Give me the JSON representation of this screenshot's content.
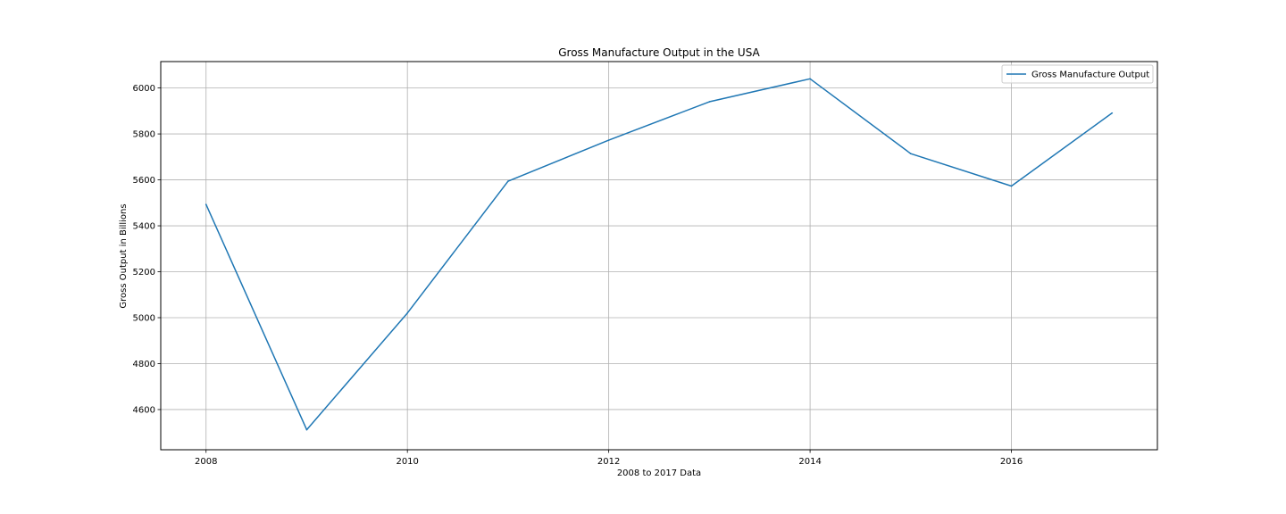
{
  "chart_data": {
    "type": "line",
    "title": "Gross Manufacture Output in the USA",
    "xlabel": "2008 to 2017 Data",
    "ylabel": "Gross Output in Billions",
    "x": [
      2008,
      2009,
      2010,
      2011,
      2012,
      2013,
      2014,
      2015,
      2016,
      2017
    ],
    "series": [
      {
        "name": "Gross Manufacture Output",
        "values": [
          5493,
          4512,
          5020,
          5594,
          5773,
          5940,
          6040,
          5714,
          5573,
          5891
        ],
        "color": "#1f77b4"
      }
    ],
    "xlim": [
      2007.55,
      2017.45
    ],
    "ylim": [
      4425,
      6115
    ],
    "xticks": [
      2008,
      2010,
      2012,
      2014,
      2016
    ],
    "yticks": [
      4600,
      4800,
      5000,
      5200,
      5400,
      5600,
      5800,
      6000
    ],
    "grid": true,
    "legend_position": "top-right"
  }
}
